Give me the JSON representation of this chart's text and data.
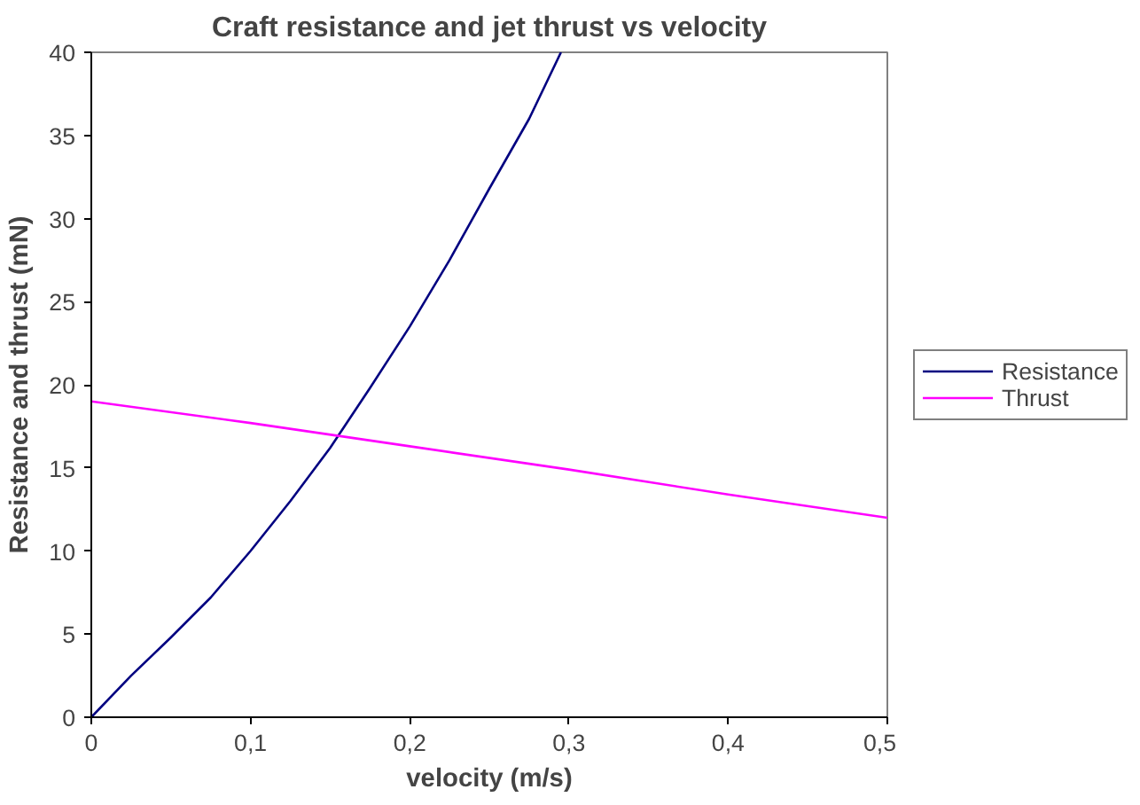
{
  "chart_data": {
    "type": "line",
    "title": "Craft resistance and jet thrust vs velocity",
    "xlabel": "velocity (m/s)",
    "ylabel": "Resistance and thrust (mN)",
    "xlim": [
      0,
      0.5
    ],
    "ylim": [
      0,
      40
    ],
    "xticks": [
      0,
      {
        "value": 0.1,
        "label": "0,1"
      },
      {
        "value": 0.2,
        "label": "0,2"
      },
      {
        "value": 0.3,
        "label": "0,3"
      },
      {
        "value": 0.4,
        "label": "0,4"
      },
      {
        "value": 0.5,
        "label": "0,5"
      }
    ],
    "yticks": [
      0,
      5,
      10,
      15,
      20,
      25,
      30,
      35,
      40
    ],
    "grid": false,
    "legend": "right",
    "marker": "none",
    "line_style": "solid",
    "series": [
      {
        "name": "Resistance",
        "color": "#000080",
        "x": [
          0,
          0.025,
          0.05,
          0.075,
          0.1,
          0.125,
          0.15,
          0.175,
          0.2,
          0.225,
          0.25,
          0.275,
          0.295
        ],
        "values": [
          0,
          2.5,
          4.8,
          7.2,
          10,
          13,
          16.2,
          19.8,
          23.5,
          27.5,
          31.8,
          36,
          40
        ]
      },
      {
        "name": "Thrust",
        "color": "#ff00ff",
        "x": [
          0,
          0.1,
          0.2,
          0.3,
          0.4,
          0.5
        ],
        "values": [
          19,
          17.7,
          16.3,
          14.9,
          13.4,
          12
        ]
      }
    ]
  }
}
